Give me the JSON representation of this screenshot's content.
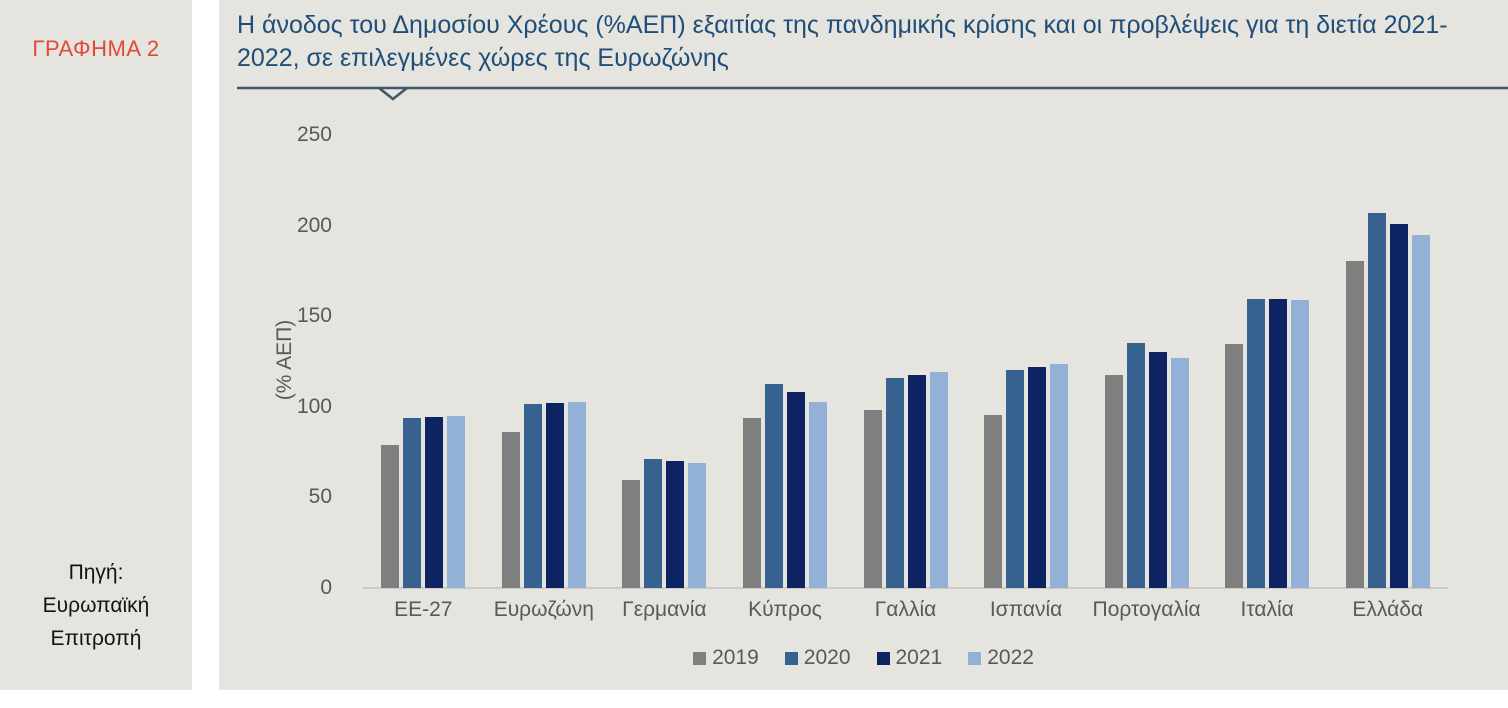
{
  "colors": {
    "panel_background": "#E5E4DE",
    "title_blue": "#1F4E79",
    "figure_label_red": "#E04B35",
    "divider_slate": "#44546A",
    "axis_text_gray": "#595959",
    "axis_line": "#CDCBC4"
  },
  "sidebar": {
    "figure_label": "ΓΡΑΦΗΜΑ 2",
    "source_lines": [
      "Πηγή:",
      "Ευρωπαϊκή",
      "Επιτροπή"
    ]
  },
  "header": {
    "title": "Η άνοδος του Δημοσίου Χρέους (%ΑΕΠ) εξαιτίας της πανδημικής κρίσης και οι προβλέψεις για τη διετία 2021-2022, σε επιλεγμένες χώρες της Ευρωζώνης"
  },
  "chart_data": {
    "type": "bar",
    "title": "Η άνοδος του Δημοσίου Χρέους (%ΑΕΠ) εξαιτίας της πανδημικής κρίσης και οι προβλέψεις για τη διετία 2021-2022, σε επιλεγμένες χώρες της Ευρωζώνης",
    "xlabel": "",
    "ylabel": "(% ΑΕΠ)",
    "ylim": [
      0,
      250
    ],
    "yticks": [
      0,
      50,
      100,
      150,
      200,
      250
    ],
    "grid": false,
    "legend_position": "bottom-center",
    "categories": [
      "ΕΕ-27",
      "Ευρωζώνη",
      "Γερμανία",
      "Κύπρος",
      "Γαλλία",
      "Ισπανία",
      "Πορτογαλία",
      "Ιταλία",
      "Ελλάδα"
    ],
    "series": [
      {
        "name": "2019",
        "color": "#7F7F7F",
        "values": [
          79.2,
          85.9,
          59.6,
          94.0,
          98.1,
          95.5,
          117.7,
          134.7,
          180.5
        ]
      },
      {
        "name": "2020",
        "color": "#37618F",
        "values": [
          93.9,
          101.7,
          71.2,
          112.6,
          115.9,
          120.3,
          135.1,
          159.6,
          207.1
        ]
      },
      {
        "name": "2021",
        "color": "#0D2362",
        "values": [
          94.6,
          102.3,
          70.1,
          108.2,
          117.8,
          122.0,
          130.3,
          159.5,
          200.7
        ]
      },
      {
        "name": "2022",
        "color": "#93B0D7",
        "values": [
          94.9,
          102.6,
          69.0,
          102.8,
          119.4,
          123.9,
          127.2,
          159.1,
          194.6
        ]
      }
    ]
  }
}
